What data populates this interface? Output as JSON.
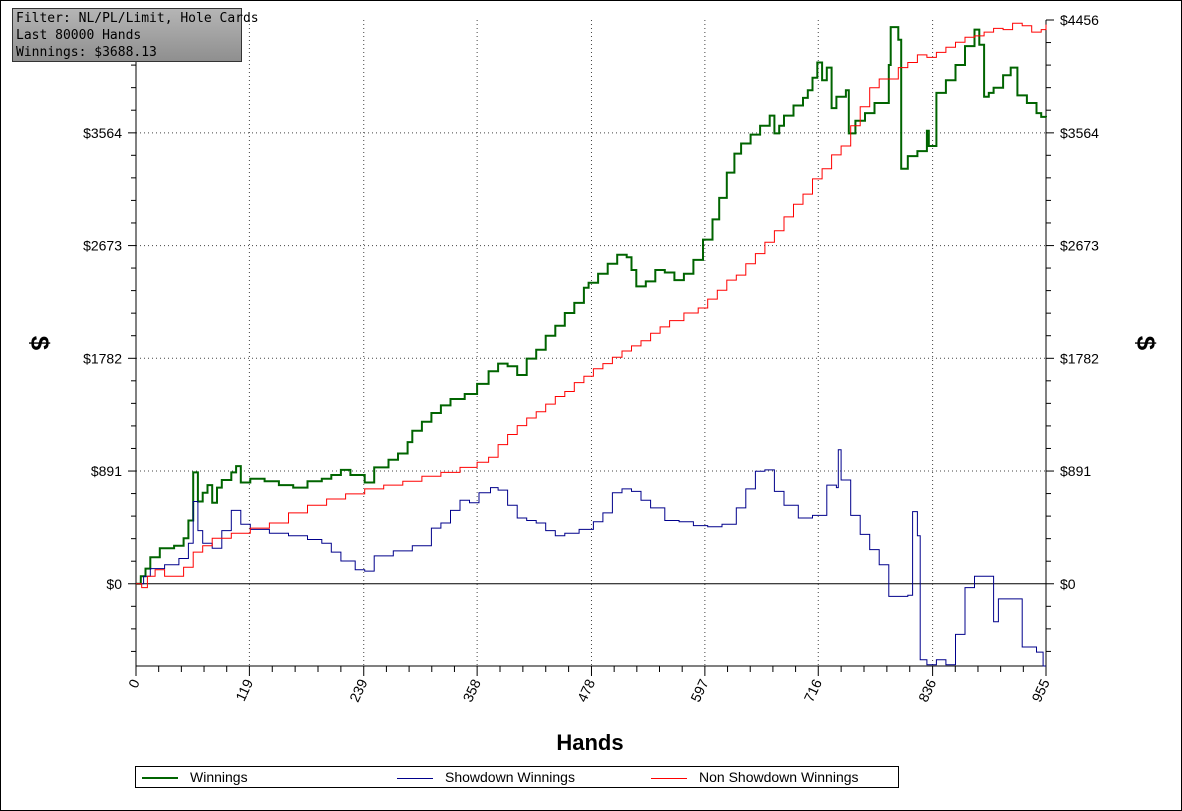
{
  "filter_box": {
    "line1": "Filter: NL/PL/Limit, Hole Cards",
    "line2": "Last 80000 Hands",
    "line3": "Winnings: $3688.13"
  },
  "chart_data": {
    "type": "line",
    "xlabel": "Hands",
    "ylabel": "$",
    "xlim": [
      0,
      955
    ],
    "ylim": [
      -650,
      4456
    ],
    "x_ticks": [
      "0",
      "119",
      "239",
      "358",
      "478",
      "597",
      "716",
      "836",
      "955"
    ],
    "y_ticks": [
      "$0",
      "$891",
      "$1782",
      "$2673",
      "$3564",
      "$4456"
    ],
    "grid": true,
    "legend_position": "bottom",
    "series": [
      {
        "name": "Winnings",
        "color": "#006400",
        "points": [
          [
            0,
            0
          ],
          [
            5,
            60
          ],
          [
            10,
            120
          ],
          [
            15,
            210
          ],
          [
            25,
            280
          ],
          [
            40,
            300
          ],
          [
            50,
            360
          ],
          [
            55,
            500
          ],
          [
            60,
            880
          ],
          [
            65,
            650
          ],
          [
            70,
            720
          ],
          [
            75,
            780
          ],
          [
            80,
            640
          ],
          [
            85,
            760
          ],
          [
            90,
            820
          ],
          [
            100,
            880
          ],
          [
            105,
            930
          ],
          [
            110,
            800
          ],
          [
            120,
            830
          ],
          [
            135,
            810
          ],
          [
            150,
            780
          ],
          [
            165,
            760
          ],
          [
            180,
            810
          ],
          [
            195,
            830
          ],
          [
            205,
            860
          ],
          [
            215,
            900
          ],
          [
            225,
            860
          ],
          [
            240,
            800
          ],
          [
            250,
            920
          ],
          [
            265,
            980
          ],
          [
            275,
            1030
          ],
          [
            285,
            1120
          ],
          [
            290,
            1210
          ],
          [
            300,
            1280
          ],
          [
            310,
            1350
          ],
          [
            320,
            1410
          ],
          [
            330,
            1460
          ],
          [
            345,
            1500
          ],
          [
            358,
            1580
          ],
          [
            370,
            1680
          ],
          [
            380,
            1740
          ],
          [
            390,
            1720
          ],
          [
            400,
            1650
          ],
          [
            410,
            1780
          ],
          [
            420,
            1850
          ],
          [
            430,
            1960
          ],
          [
            440,
            2040
          ],
          [
            450,
            2140
          ],
          [
            460,
            2220
          ],
          [
            470,
            2340
          ],
          [
            475,
            2380
          ],
          [
            485,
            2450
          ],
          [
            495,
            2530
          ],
          [
            505,
            2600
          ],
          [
            515,
            2580
          ],
          [
            520,
            2480
          ],
          [
            525,
            2350
          ],
          [
            535,
            2390
          ],
          [
            545,
            2480
          ],
          [
            555,
            2460
          ],
          [
            565,
            2400
          ],
          [
            575,
            2450
          ],
          [
            585,
            2560
          ],
          [
            595,
            2720
          ],
          [
            605,
            2880
          ],
          [
            612,
            3050
          ],
          [
            620,
            3250
          ],
          [
            628,
            3400
          ],
          [
            635,
            3480
          ],
          [
            645,
            3550
          ],
          [
            655,
            3620
          ],
          [
            665,
            3700
          ],
          [
            670,
            3560
          ],
          [
            675,
            3620
          ],
          [
            680,
            3700
          ],
          [
            690,
            3780
          ],
          [
            700,
            3840
          ],
          [
            705,
            3900
          ],
          [
            710,
            4000
          ],
          [
            715,
            4120
          ],
          [
            720,
            3980
          ],
          [
            725,
            4080
          ],
          [
            730,
            3760
          ],
          [
            735,
            3850
          ],
          [
            745,
            3900
          ],
          [
            748,
            3560
          ],
          [
            755,
            3660
          ],
          [
            765,
            3720
          ],
          [
            775,
            3800
          ],
          [
            790,
            4100
          ],
          [
            792,
            4400
          ],
          [
            800,
            4300
          ],
          [
            803,
            3280
          ],
          [
            810,
            3380
          ],
          [
            820,
            3420
          ],
          [
            830,
            3580
          ],
          [
            832,
            3460
          ],
          [
            840,
            3880
          ],
          [
            850,
            3980
          ],
          [
            860,
            4100
          ],
          [
            870,
            4250
          ],
          [
            880,
            4380
          ],
          [
            885,
            4260
          ],
          [
            890,
            3850
          ],
          [
            895,
            3880
          ],
          [
            900,
            3920
          ],
          [
            910,
            4020
          ],
          [
            918,
            4080
          ],
          [
            925,
            3860
          ],
          [
            935,
            3800
          ],
          [
            945,
            3720
          ],
          [
            950,
            3690
          ],
          [
            955,
            3688
          ]
        ]
      },
      {
        "name": "Showdown Winnings",
        "color": "#00008b",
        "points": [
          [
            0,
            0
          ],
          [
            8,
            60
          ],
          [
            15,
            120
          ],
          [
            30,
            150
          ],
          [
            45,
            200
          ],
          [
            55,
            320
          ],
          [
            60,
            650
          ],
          [
            65,
            420
          ],
          [
            70,
            320
          ],
          [
            80,
            280
          ],
          [
            90,
            420
          ],
          [
            100,
            580
          ],
          [
            110,
            470
          ],
          [
            120,
            430
          ],
          [
            140,
            400
          ],
          [
            160,
            380
          ],
          [
            180,
            350
          ],
          [
            195,
            320
          ],
          [
            205,
            250
          ],
          [
            215,
            180
          ],
          [
            230,
            110
          ],
          [
            240,
            100
          ],
          [
            250,
            220
          ],
          [
            270,
            260
          ],
          [
            290,
            300
          ],
          [
            310,
            440
          ],
          [
            320,
            480
          ],
          [
            330,
            580
          ],
          [
            340,
            660
          ],
          [
            350,
            640
          ],
          [
            360,
            720
          ],
          [
            372,
            760
          ],
          [
            380,
            740
          ],
          [
            390,
            620
          ],
          [
            400,
            520
          ],
          [
            410,
            500
          ],
          [
            420,
            480
          ],
          [
            430,
            420
          ],
          [
            440,
            380
          ],
          [
            450,
            400
          ],
          [
            465,
            430
          ],
          [
            480,
            490
          ],
          [
            490,
            560
          ],
          [
            500,
            720
          ],
          [
            510,
            750
          ],
          [
            520,
            730
          ],
          [
            530,
            660
          ],
          [
            540,
            600
          ],
          [
            555,
            500
          ],
          [
            570,
            490
          ],
          [
            585,
            460
          ],
          [
            600,
            450
          ],
          [
            615,
            470
          ],
          [
            630,
            600
          ],
          [
            640,
            750
          ],
          [
            650,
            890
          ],
          [
            660,
            900
          ],
          [
            670,
            730
          ],
          [
            680,
            620
          ],
          [
            695,
            520
          ],
          [
            710,
            540
          ],
          [
            725,
            780
          ],
          [
            735,
            760
          ],
          [
            737,
            1060
          ],
          [
            740,
            820
          ],
          [
            750,
            540
          ],
          [
            760,
            390
          ],
          [
            770,
            270
          ],
          [
            780,
            150
          ],
          [
            790,
            -100
          ],
          [
            800,
            -100
          ],
          [
            810,
            -90
          ],
          [
            815,
            570
          ],
          [
            820,
            380
          ],
          [
            823,
            -600
          ],
          [
            830,
            -640
          ],
          [
            840,
            -600
          ],
          [
            850,
            -640
          ],
          [
            860,
            -400
          ],
          [
            870,
            -30
          ],
          [
            880,
            60
          ],
          [
            895,
            60
          ],
          [
            900,
            -300
          ],
          [
            905,
            -120
          ],
          [
            915,
            -120
          ],
          [
            925,
            -120
          ],
          [
            930,
            -500
          ],
          [
            935,
            -500
          ],
          [
            945,
            -540
          ],
          [
            952,
            -650
          ],
          [
            955,
            -650
          ]
        ]
      },
      {
        "name": "Non Showdown Winnings",
        "color": "#ff0000",
        "points": [
          [
            0,
            0
          ],
          [
            6,
            -30
          ],
          [
            12,
            60
          ],
          [
            20,
            110
          ],
          [
            30,
            60
          ],
          [
            40,
            60
          ],
          [
            50,
            130
          ],
          [
            60,
            250
          ],
          [
            70,
            300
          ],
          [
            80,
            360
          ],
          [
            100,
            400
          ],
          [
            120,
            440
          ],
          [
            140,
            480
          ],
          [
            160,
            560
          ],
          [
            180,
            620
          ],
          [
            200,
            670
          ],
          [
            220,
            710
          ],
          [
            240,
            750
          ],
          [
            260,
            780
          ],
          [
            280,
            810
          ],
          [
            300,
            850
          ],
          [
            320,
            880
          ],
          [
            340,
            920
          ],
          [
            358,
            960
          ],
          [
            370,
            1000
          ],
          [
            380,
            1100
          ],
          [
            390,
            1180
          ],
          [
            400,
            1250
          ],
          [
            410,
            1310
          ],
          [
            420,
            1360
          ],
          [
            430,
            1420
          ],
          [
            440,
            1480
          ],
          [
            450,
            1520
          ],
          [
            460,
            1590
          ],
          [
            470,
            1640
          ],
          [
            480,
            1700
          ],
          [
            490,
            1740
          ],
          [
            500,
            1790
          ],
          [
            510,
            1840
          ],
          [
            520,
            1880
          ],
          [
            530,
            1920
          ],
          [
            540,
            1980
          ],
          [
            550,
            2030
          ],
          [
            560,
            2080
          ],
          [
            575,
            2140
          ],
          [
            590,
            2180
          ],
          [
            600,
            2250
          ],
          [
            610,
            2320
          ],
          [
            620,
            2400
          ],
          [
            630,
            2440
          ],
          [
            640,
            2530
          ],
          [
            650,
            2610
          ],
          [
            660,
            2700
          ],
          [
            670,
            2790
          ],
          [
            680,
            2900
          ],
          [
            690,
            3000
          ],
          [
            700,
            3080
          ],
          [
            710,
            3200
          ],
          [
            720,
            3280
          ],
          [
            730,
            3390
          ],
          [
            740,
            3460
          ],
          [
            750,
            3620
          ],
          [
            760,
            3770
          ],
          [
            770,
            3920
          ],
          [
            780,
            3990
          ],
          [
            790,
            3990
          ],
          [
            800,
            4080
          ],
          [
            810,
            4120
          ],
          [
            820,
            4180
          ],
          [
            830,
            4160
          ],
          [
            840,
            4200
          ],
          [
            850,
            4240
          ],
          [
            860,
            4280
          ],
          [
            870,
            4320
          ],
          [
            880,
            4330
          ],
          [
            890,
            4360
          ],
          [
            900,
            4390
          ],
          [
            910,
            4380
          ],
          [
            920,
            4430
          ],
          [
            930,
            4410
          ],
          [
            940,
            4360
          ],
          [
            950,
            4380
          ],
          [
            955,
            4420
          ]
        ]
      }
    ]
  }
}
